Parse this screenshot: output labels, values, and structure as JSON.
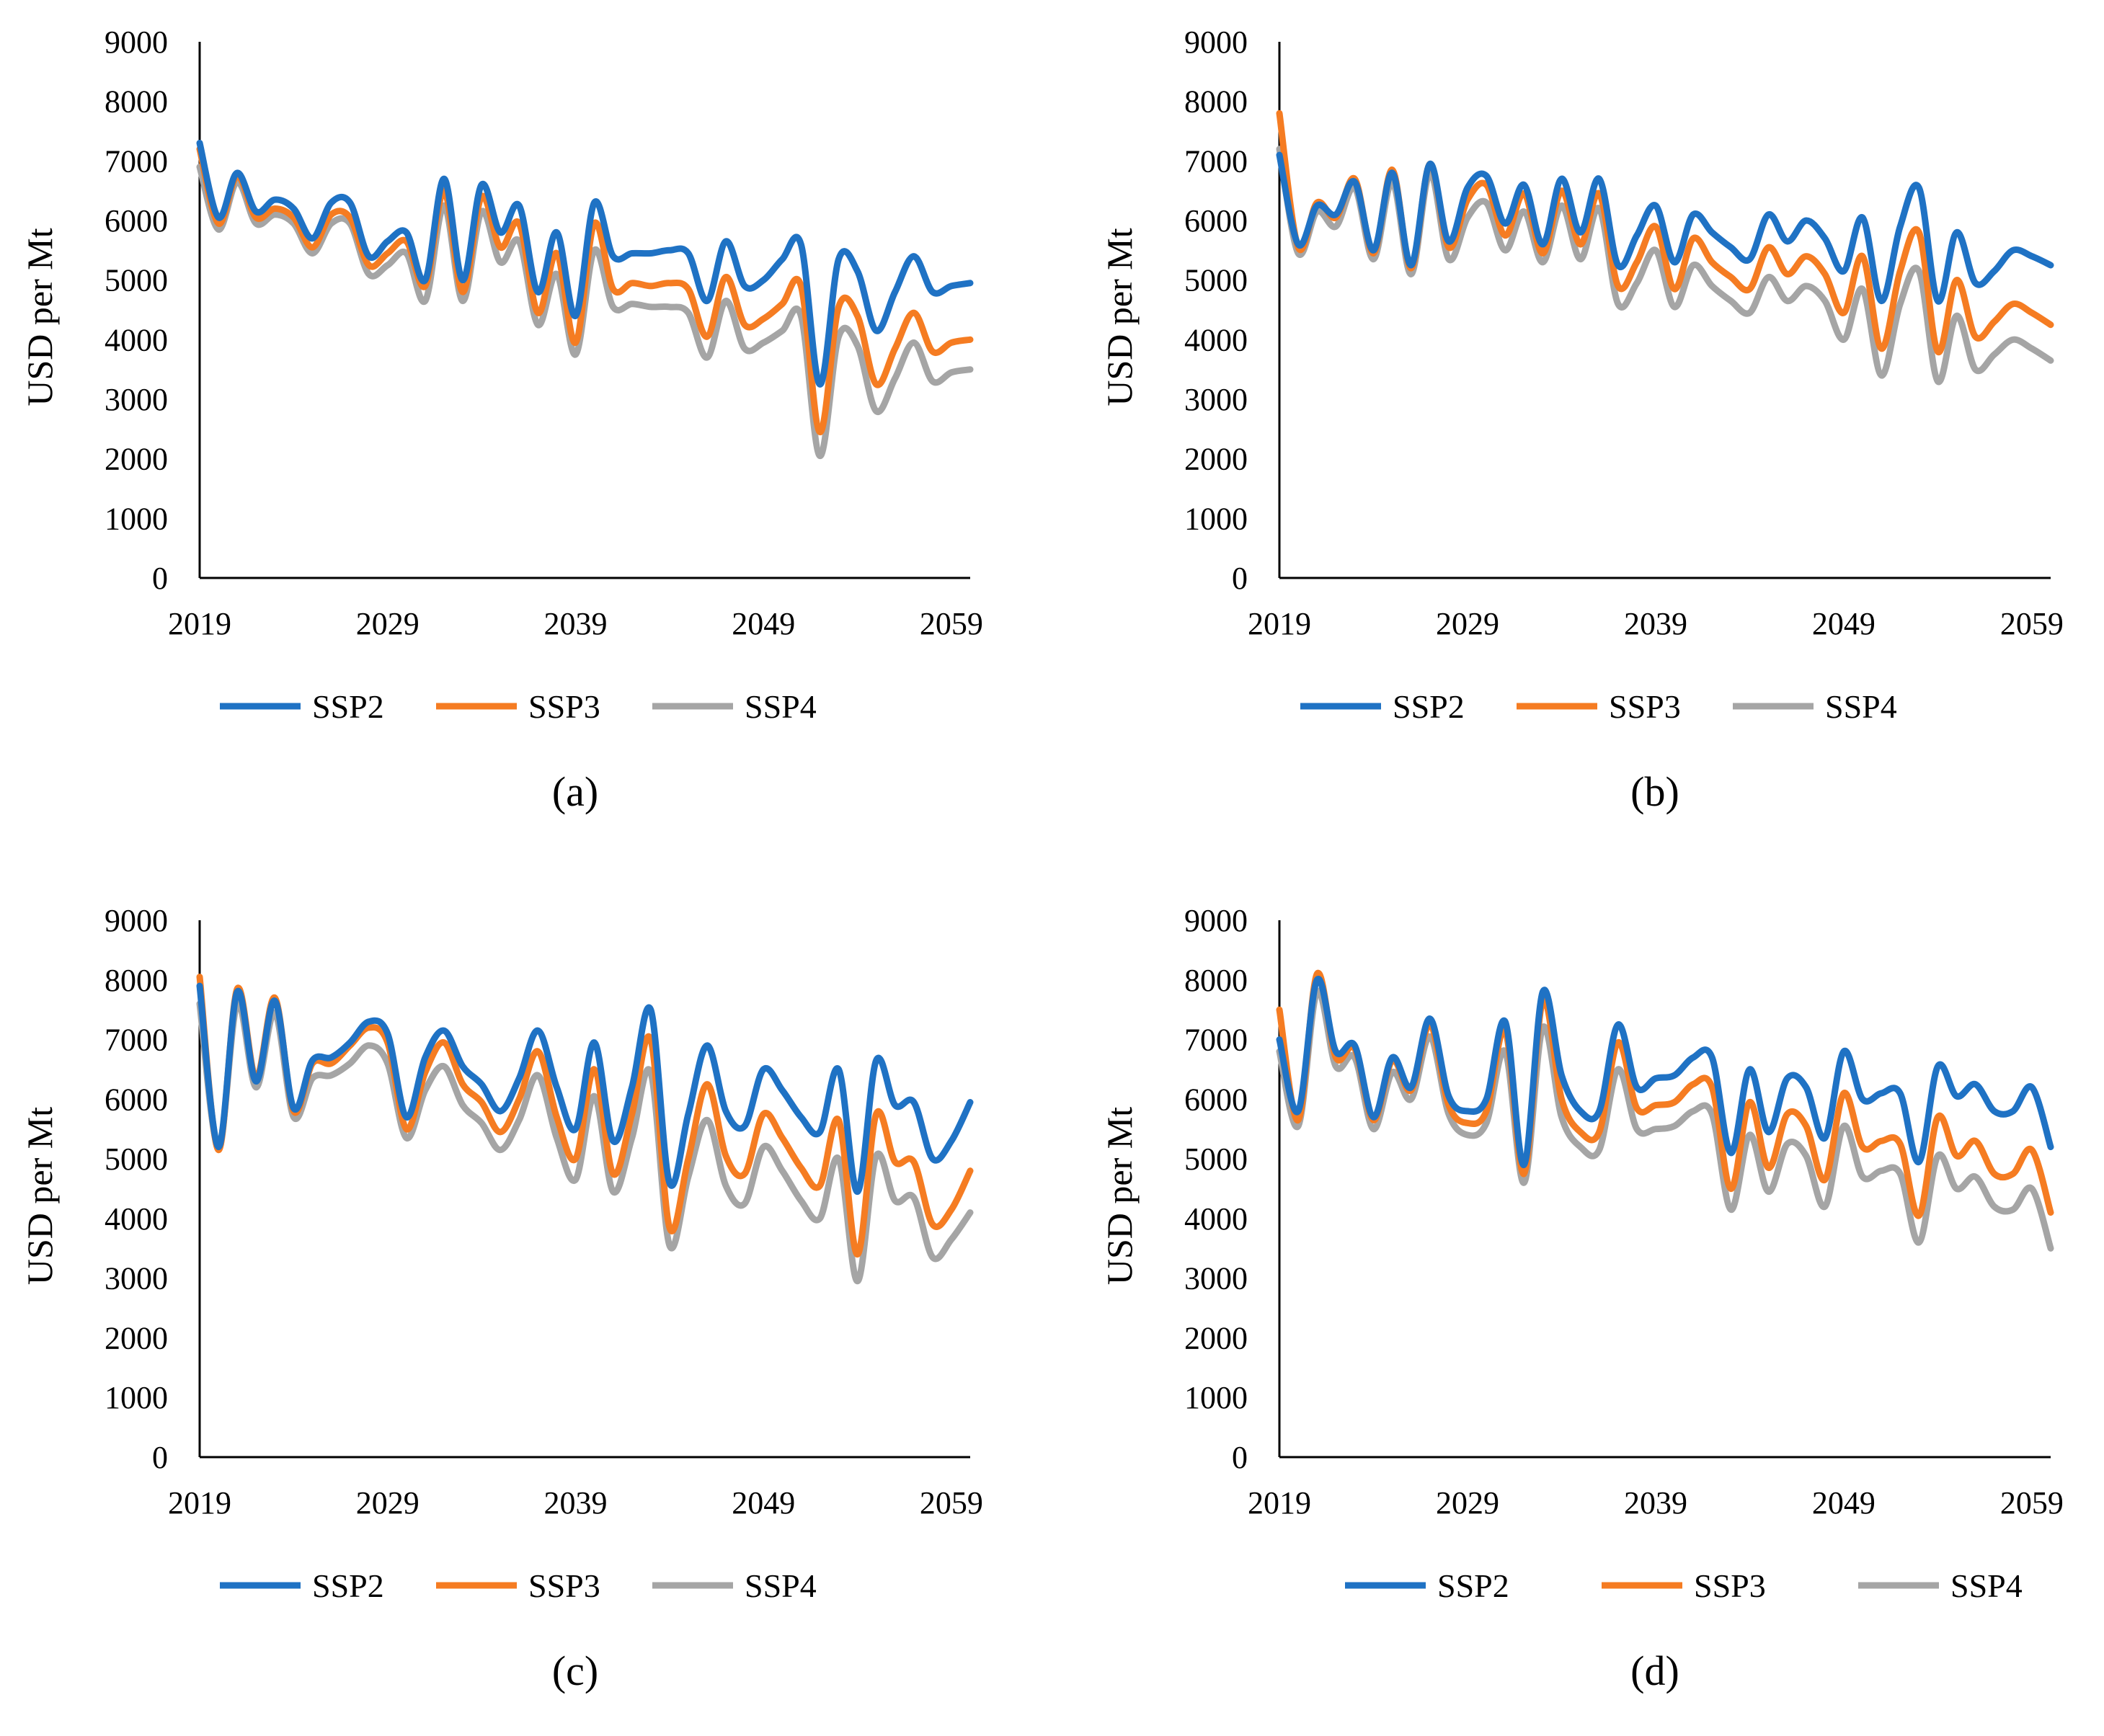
{
  "colors": {
    "SSP2": "#1f72c4",
    "SSP3": "#f57c22",
    "SSP4": "#a5a5a5"
  },
  "chart_data": [
    {
      "type": "line",
      "panel_label": "(a)",
      "ylabel": "USD per Mt",
      "ylim": [
        0,
        9000
      ],
      "yticks": [
        0,
        1000,
        2000,
        3000,
        4000,
        5000,
        6000,
        7000,
        8000,
        9000
      ],
      "xlim": [
        2019,
        2060
      ],
      "xticks": [
        2019,
        2029,
        2039,
        2049,
        2059
      ],
      "legend": [
        "SSP2",
        "SSP3",
        "SSP4"
      ],
      "x": [
        2019,
        2020,
        2021,
        2022,
        2023,
        2024,
        2025,
        2026,
        2027,
        2028,
        2029,
        2030,
        2031,
        2032,
        2033,
        2034,
        2035,
        2036,
        2037,
        2038,
        2039,
        2040,
        2041,
        2042,
        2043,
        2044,
        2045,
        2046,
        2047,
        2048,
        2049,
        2050,
        2051,
        2052,
        2053,
        2054,
        2055,
        2056,
        2057,
        2058,
        2059,
        2060
      ],
      "series": [
        {
          "name": "SSP2",
          "values": [
            7300,
            6050,
            6800,
            6150,
            6350,
            6200,
            5700,
            6300,
            6300,
            5400,
            5650,
            5800,
            5000,
            6700,
            5000,
            6600,
            5800,
            6250,
            4800,
            5800,
            4400,
            6300,
            5400,
            5450,
            5450,
            5500,
            5450,
            4650,
            5650,
            4900,
            5000,
            5350,
            5600,
            3250,
            5350,
            5150,
            4150,
            4800,
            5400,
            4800,
            4900,
            4950
          ]
        },
        {
          "name": "SSP3",
          "values": [
            7200,
            5950,
            6750,
            6050,
            6200,
            6050,
            5550,
            6100,
            6050,
            5250,
            5450,
            5650,
            4900,
            6500,
            4800,
            6400,
            5550,
            5950,
            4450,
            5450,
            3950,
            5950,
            4850,
            4950,
            4900,
            4950,
            4850,
            4050,
            5050,
            4250,
            4350,
            4600,
            4900,
            2450,
            4550,
            4400,
            3250,
            3850,
            4450,
            3800,
            3950,
            4000
          ]
        },
        {
          "name": "SSP4",
          "values": [
            6900,
            5850,
            6650,
            5950,
            6100,
            5950,
            5450,
            5950,
            5950,
            5100,
            5250,
            5450,
            4650,
            6250,
            4650,
            6150,
            5300,
            5650,
            4250,
            5100,
            3750,
            5500,
            4550,
            4600,
            4550,
            4550,
            4450,
            3700,
            4650,
            3850,
            3950,
            4150,
            4400,
            2050,
            4050,
            3900,
            2800,
            3350,
            3950,
            3300,
            3450,
            3500
          ]
        }
      ]
    },
    {
      "type": "line",
      "panel_label": "(b)",
      "ylabel": "USD per Mt",
      "ylim": [
        0,
        9000
      ],
      "yticks": [
        0,
        1000,
        2000,
        3000,
        4000,
        5000,
        6000,
        7000,
        8000,
        9000
      ],
      "xlim": [
        2019,
        2060
      ],
      "xticks": [
        2019,
        2029,
        2039,
        2049,
        2059
      ],
      "legend": [
        "SSP2",
        "SSP3",
        "SSP4"
      ],
      "x": [
        2019,
        2020,
        2021,
        2022,
        2023,
        2024,
        2025,
        2026,
        2027,
        2028,
        2029,
        2030,
        2031,
        2032,
        2033,
        2034,
        2035,
        2036,
        2037,
        2038,
        2039,
        2040,
        2041,
        2042,
        2043,
        2044,
        2045,
        2046,
        2047,
        2048,
        2049,
        2050,
        2051,
        2052,
        2053,
        2054,
        2055,
        2056,
        2057,
        2058,
        2059,
        2060
      ],
      "series": [
        {
          "name": "SSP2",
          "values": [
            7100,
            5600,
            6250,
            6100,
            6650,
            5500,
            6800,
            5250,
            6950,
            5650,
            6550,
            6750,
            5950,
            6600,
            5600,
            6700,
            5800,
            6700,
            5250,
            5750,
            6250,
            5300,
            6100,
            5800,
            5550,
            5350,
            6100,
            5650,
            6000,
            5700,
            5150,
            6050,
            4650,
            5900,
            6550,
            4650,
            5800,
            4950,
            5150,
            5500,
            5400,
            5250
          ]
        },
        {
          "name": "SSP3",
          "values": [
            7800,
            5550,
            6300,
            6050,
            6700,
            5450,
            6850,
            5200,
            6950,
            5550,
            6350,
            6600,
            5750,
            6450,
            5450,
            6500,
            5600,
            6450,
            4900,
            5300,
            5900,
            4850,
            5700,
            5300,
            5050,
            4850,
            5550,
            5100,
            5400,
            5100,
            4450,
            5400,
            3850,
            5150,
            5800,
            3800,
            5000,
            4050,
            4300,
            4600,
            4450,
            4250
          ]
        },
        {
          "name": "SSP4",
          "values": [
            7200,
            5450,
            6150,
            5900,
            6550,
            5350,
            6650,
            5100,
            6800,
            5350,
            6050,
            6300,
            5500,
            6150,
            5300,
            6250,
            5350,
            6200,
            4600,
            4950,
            5500,
            4550,
            5250,
            4900,
            4650,
            4450,
            5050,
            4650,
            4900,
            4650,
            4000,
            4850,
            3400,
            4600,
            5150,
            3300,
            4400,
            3500,
            3750,
            4000,
            3850,
            3650
          ]
        }
      ]
    },
    {
      "type": "line",
      "panel_label": "(c)",
      "ylabel": "USD per Mt",
      "ylim": [
        0,
        9000
      ],
      "yticks": [
        0,
        1000,
        2000,
        3000,
        4000,
        5000,
        6000,
        7000,
        8000,
        9000
      ],
      "xlim": [
        2019,
        2060
      ],
      "xticks": [
        2019,
        2029,
        2039,
        2049,
        2059
      ],
      "legend": [
        "SSP2",
        "SSP3",
        "SSP4"
      ],
      "x": [
        2019,
        2020,
        2021,
        2022,
        2023,
        2024,
        2025,
        2026,
        2027,
        2028,
        2029,
        2030,
        2031,
        2032,
        2033,
        2034,
        2035,
        2036,
        2037,
        2038,
        2039,
        2040,
        2041,
        2042,
        2043,
        2044,
        2045,
        2046,
        2047,
        2048,
        2049,
        2050,
        2051,
        2052,
        2053,
        2054,
        2055,
        2056,
        2057,
        2058,
        2059,
        2060
      ],
      "series": [
        {
          "name": "SSP2",
          "values": [
            7900,
            5200,
            7800,
            6300,
            7650,
            5850,
            6650,
            6700,
            6950,
            7300,
            7100,
            5700,
            6700,
            7150,
            6550,
            6250,
            5800,
            6350,
            7150,
            6200,
            5500,
            6950,
            5300,
            6200,
            7500,
            4600,
            5750,
            6900,
            5800,
            5550,
            6500,
            6150,
            5700,
            5450,
            6500,
            4450,
            6650,
            5900,
            5950,
            5000,
            5300,
            5950
          ]
        },
        {
          "name": "SSP3",
          "values": [
            8050,
            5150,
            7850,
            6350,
            7700,
            5800,
            6600,
            6600,
            6900,
            7200,
            6950,
            5500,
            6450,
            6950,
            6250,
            5950,
            5450,
            6000,
            6800,
            5700,
            5000,
            6500,
            4750,
            5750,
            7000,
            3850,
            5000,
            6250,
            5050,
            4750,
            5750,
            5350,
            4850,
            4550,
            5650,
            3400,
            5750,
            4950,
            4950,
            3900,
            4150,
            4800
          ]
        },
        {
          "name": "SSP4",
          "values": [
            7600,
            5200,
            7600,
            6200,
            7450,
            5700,
            6350,
            6400,
            6600,
            6900,
            6600,
            5350,
            6150,
            6550,
            5900,
            5600,
            5150,
            5650,
            6400,
            5350,
            4650,
            6050,
            4450,
            5350,
            6450,
            3550,
            4700,
            5650,
            4550,
            4250,
            5200,
            4800,
            4300,
            4000,
            5000,
            2950,
            5050,
            4300,
            4350,
            3350,
            3650,
            4100
          ]
        }
      ]
    },
    {
      "type": "line",
      "panel_label": "(d)",
      "ylabel": "USD per Mt",
      "ylim": [
        0,
        9000
      ],
      "yticks": [
        0,
        1000,
        2000,
        3000,
        4000,
        5000,
        6000,
        7000,
        8000,
        9000
      ],
      "xlim": [
        2019,
        2060
      ],
      "xticks": [
        2019,
        2029,
        2039,
        2049,
        2059
      ],
      "legend": [
        "SSP2",
        "SSP3",
        "SSP4"
      ],
      "x": [
        2019,
        2020,
        2021,
        2022,
        2023,
        2024,
        2025,
        2026,
        2027,
        2028,
        2029,
        2030,
        2031,
        2032,
        2033,
        2034,
        2035,
        2036,
        2037,
        2038,
        2039,
        2040,
        2041,
        2042,
        2043,
        2044,
        2045,
        2046,
        2047,
        2048,
        2049,
        2050,
        2051,
        2052,
        2053,
        2054,
        2055,
        2056,
        2057,
        2058,
        2059,
        2060
      ],
      "series": [
        {
          "name": "SSP2",
          "values": [
            7000,
            5800,
            8000,
            6800,
            6900,
            5700,
            6700,
            6200,
            7350,
            6050,
            5800,
            6000,
            7300,
            4900,
            7800,
            6400,
            5800,
            5800,
            7250,
            6200,
            6350,
            6400,
            6700,
            6700,
            5100,
            6500,
            5450,
            6350,
            6200,
            5350,
            6800,
            6000,
            6100,
            6100,
            4950,
            6550,
            6050,
            6250,
            5800,
            5800,
            6200,
            5200
          ]
        },
        {
          "name": "SSP3",
          "values": [
            7500,
            5650,
            8100,
            6700,
            6850,
            5650,
            6650,
            6150,
            7250,
            5900,
            5600,
            5800,
            7150,
            4750,
            7650,
            6000,
            5450,
            5450,
            6950,
            5850,
            5900,
            5950,
            6250,
            6200,
            4500,
            5950,
            4850,
            5750,
            5550,
            4650,
            6100,
            5200,
            5300,
            5250,
            4050,
            5700,
            5050,
            5300,
            4750,
            4750,
            5150,
            4100
          ]
        },
        {
          "name": "SSP4",
          "values": [
            6800,
            5550,
            7800,
            6550,
            6700,
            5500,
            6450,
            6000,
            7050,
            5750,
            5400,
            5600,
            6800,
            4600,
            7200,
            5700,
            5200,
            5150,
            6500,
            5500,
            5500,
            5550,
            5800,
            5750,
            4150,
            5400,
            4450,
            5250,
            5050,
            4200,
            5550,
            4700,
            4800,
            4750,
            3600,
            5050,
            4500,
            4700,
            4200,
            4150,
            4500,
            3500
          ]
        }
      ]
    }
  ]
}
